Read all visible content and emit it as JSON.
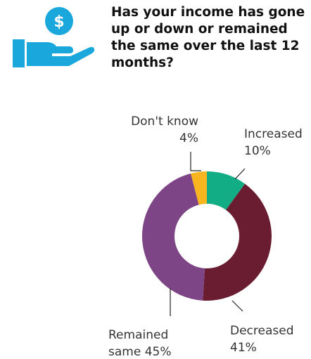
{
  "header": {
    "question": "Has your income has gone up or down or remained the same over the last 12 months?",
    "icon": "hand-holding-dollar-icon",
    "icon_color": "#1aa7dc",
    "icon_symbol": "$"
  },
  "chart_data": {
    "type": "pie",
    "donut": true,
    "categories": [
      "Increased",
      "Decreased",
      "Remained same",
      "Don't know"
    ],
    "values": [
      10,
      41,
      45,
      4
    ],
    "colors": [
      "#12ad84",
      "#6a1c30",
      "#7d4585",
      "#f8b51f"
    ],
    "labels": [
      {
        "lines": [
          "Increased",
          "10%"
        ]
      },
      {
        "lines": [
          "Decreased",
          "41%"
        ]
      },
      {
        "lines": [
          "Remained",
          "same 45%"
        ]
      },
      {
        "lines": [
          "Don't know",
          "4%"
        ]
      }
    ]
  }
}
